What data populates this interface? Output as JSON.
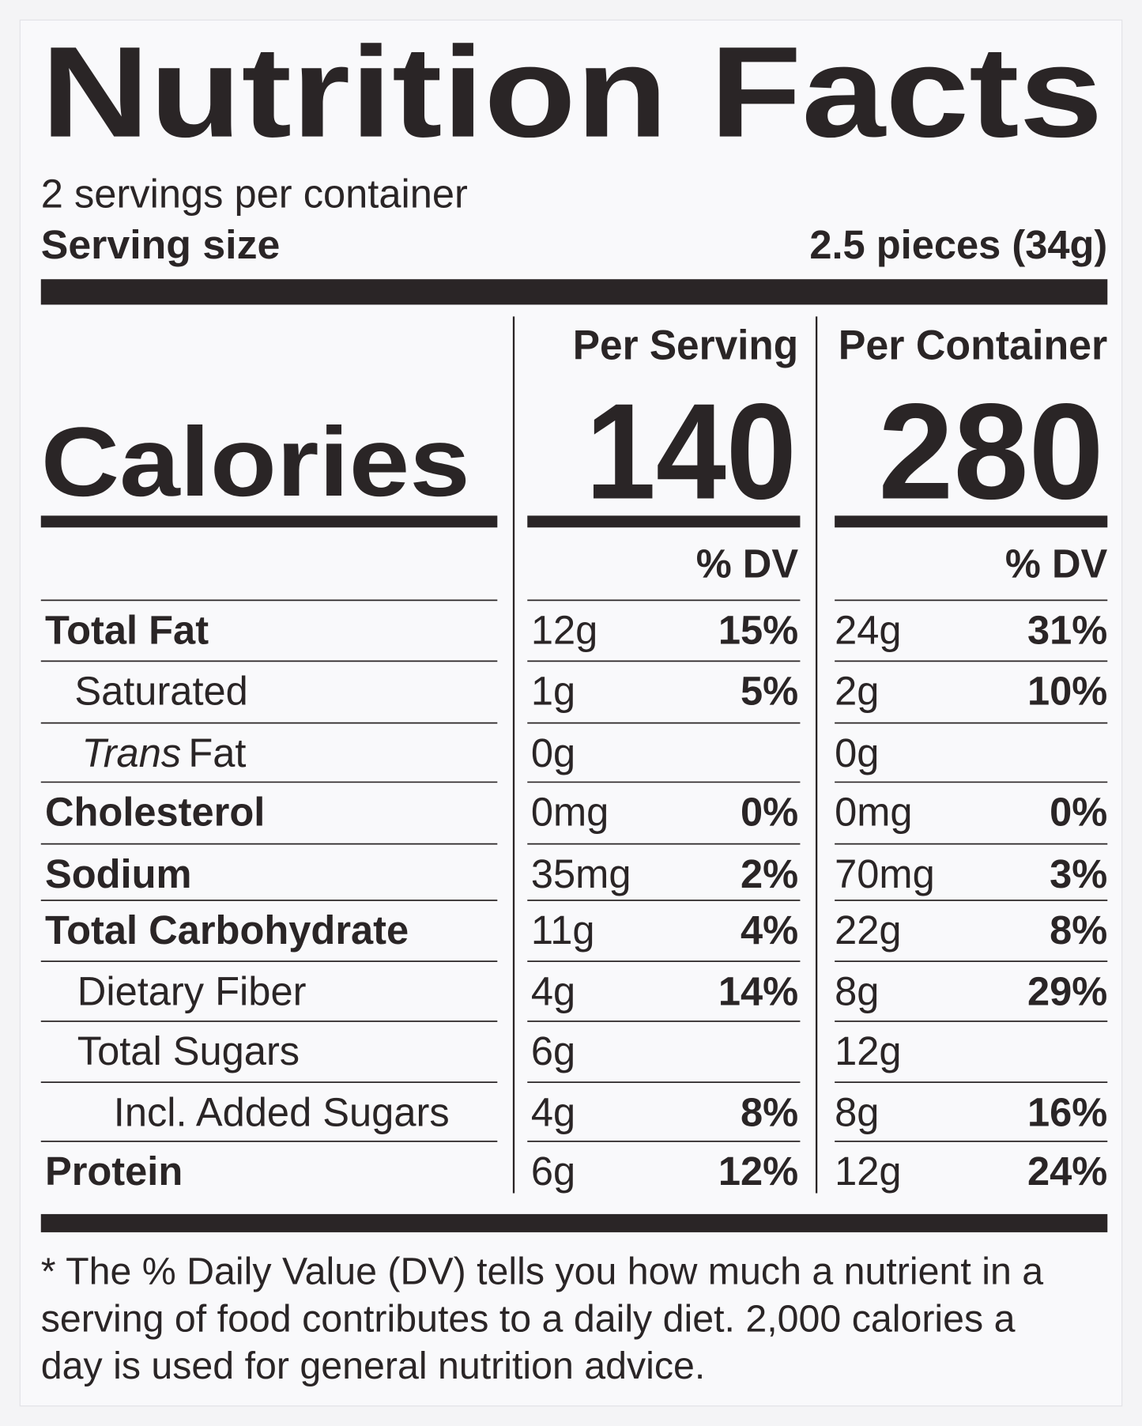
{
  "header": {
    "title": "Nutrition Facts",
    "servings": "2 servings per container",
    "serving_size_label": "Serving size",
    "serving_size_value": "2.5 pieces (34g)"
  },
  "columns": {
    "per_serving": "Per Serving",
    "per_container": "Per Container",
    "dv_serving": "% DV",
    "dv_container": "% DV"
  },
  "calories": {
    "label": "Calories",
    "per_serving": "140",
    "per_container": "280"
  },
  "rows": [
    {
      "label": "Total Fat",
      "amount": "12g",
      "dv": "15%",
      "container_amount": "24g",
      "container_dv": "31%"
    },
    {
      "label": "Saturated",
      "amount": "1g",
      "dv": "5%",
      "container_amount": "2g",
      "container_dv": "10%"
    },
    {
      "label_italic": "Trans",
      "label": "Fat",
      "amount": "0g",
      "container_amount": "0g"
    },
    {
      "label": "Cholesterol",
      "amount": "0mg",
      "dv": "0%",
      "container_amount": "0mg",
      "container_dv": "0%"
    },
    {
      "label": "Sodium",
      "amount": "35mg",
      "dv": "2%",
      "container_amount": "70mg",
      "container_dv": "3%"
    },
    {
      "label": "Total Carbohydrate",
      "amount": "11g",
      "dv": "4%",
      "container_amount": "22g",
      "container_dv": "8%"
    },
    {
      "label": "Dietary Fiber",
      "amount": "4g",
      "dv": "14%",
      "container_amount": "8g",
      "container_dv": "29%"
    },
    {
      "label": "Total Sugars",
      "amount": "6g",
      "container_amount": "12g"
    },
    {
      "label": "Incl. Added Sugars",
      "amount": "4g",
      "dv": "8%",
      "container_amount": "8g",
      "container_dv": "16%"
    },
    {
      "label": "Protein",
      "amount": "6g",
      "dv": "12%",
      "container_amount": "12g",
      "container_dv": "24%"
    }
  ],
  "footnote": [
    "* The % Daily Value (DV) tells you how much a nutrient in a",
    "serving of food contributes to a daily diet. 2,000 calories a",
    "day is used for general nutrition advice."
  ]
}
